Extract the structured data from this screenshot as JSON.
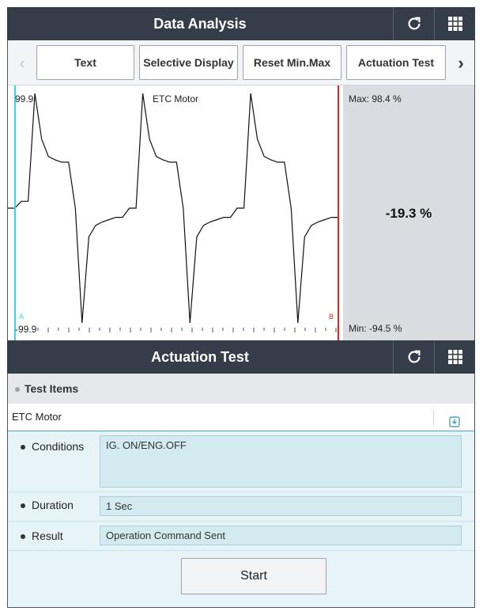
{
  "top_header": {
    "title": "Data Analysis",
    "refresh_icon": "refresh-icon",
    "grid_icon": "grid-icon"
  },
  "toolbar": {
    "prev_icon": "chevron-left-icon",
    "next_icon": "chevron-right-icon",
    "buttons": [
      {
        "label": "Text"
      },
      {
        "label": "Selective Display"
      },
      {
        "label": "Reset Min.Max"
      },
      {
        "label": "Actuation Test"
      }
    ]
  },
  "graph": {
    "title": "ETC Motor",
    "y_max_label": "99.9",
    "y_min_label": "-99.9",
    "cursor_a": "A",
    "cursor_b": "B",
    "max_text": "Max: 98.4 %",
    "min_text": "Min: -94.5 %",
    "current_text": "-19.3 %",
    "colors": {
      "cursor_a": "#3ad4e6",
      "cursor_b": "#e02424",
      "trace": "#111111"
    }
  },
  "actuation_header": {
    "title": "Actuation Test",
    "refresh_icon": "refresh-icon",
    "grid_icon": "grid-icon"
  },
  "test_items": {
    "section_label": "Test Items",
    "selected_item": "ETC Motor",
    "download_icon": "download-icon"
  },
  "params": {
    "conditions_label": "Conditions",
    "conditions_value": "IG. ON/ENG.OFF",
    "duration_label": "Duration",
    "duration_value": "1 Sec",
    "result_label": "Result",
    "result_value": "Operation Command Sent"
  },
  "start_label": "Start",
  "chart_data": {
    "type": "line",
    "title": "ETC Motor",
    "ylim": [
      -99.9,
      99.9
    ],
    "series": [
      {
        "values": [
          0,
          0,
          6,
          6,
          99.9,
          60,
          45,
          42,
          40,
          40,
          0,
          -99.9,
          -25,
          -15,
          -12,
          -10,
          -8,
          -8,
          0,
          0,
          99.9,
          60,
          45,
          42,
          40,
          40,
          0,
          -99.9,
          -25,
          -15,
          -12,
          -10,
          -8,
          -8,
          0,
          0,
          99.9,
          60,
          45,
          42,
          40,
          40,
          0,
          -99.9,
          -25,
          -15,
          -12,
          -10,
          -8,
          -8
        ]
      }
    ],
    "max": 98.4,
    "min": -94.5,
    "current": -19.3,
    "unit": "%"
  }
}
